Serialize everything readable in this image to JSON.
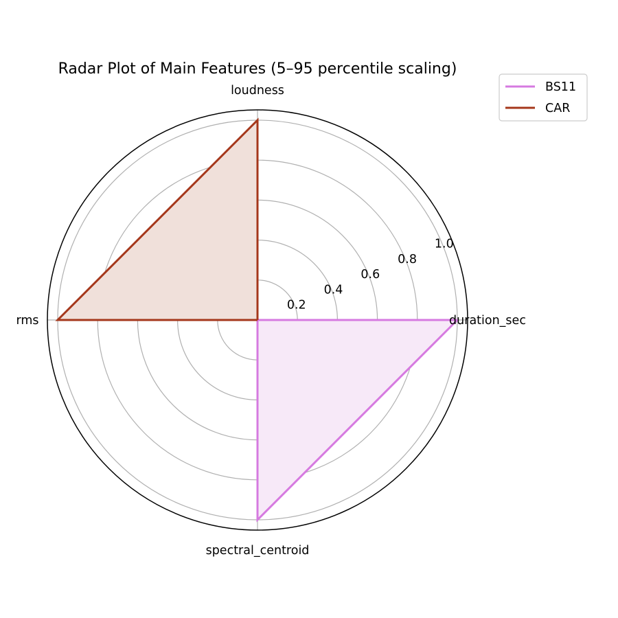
{
  "chart_data": {
    "type": "radar",
    "title": "Radar Plot of Main Features (5–95 percentile scaling)",
    "categories": [
      "duration_sec",
      "loudness",
      "rms",
      "spectral_centroid"
    ],
    "series": [
      {
        "name": "BS11",
        "values": [
          1.0,
          0.0,
          0.0,
          1.0
        ],
        "color": "#d67ae0",
        "fill": "#f7e9f8"
      },
      {
        "name": "CAR",
        "values": [
          0.0,
          1.0,
          1.0,
          0.0
        ],
        "color": "#a5371b",
        "fill": "#f0e0da"
      }
    ],
    "radial_ticks": [
      "0.2",
      "0.4",
      "0.6",
      "0.8",
      "1.0"
    ],
    "radial_tick_values": [
      0.2,
      0.4,
      0.6,
      0.8,
      1.0
    ],
    "rlim": [
      0,
      1.05
    ],
    "grid": true,
    "legend_position": "upper right (outside)"
  }
}
